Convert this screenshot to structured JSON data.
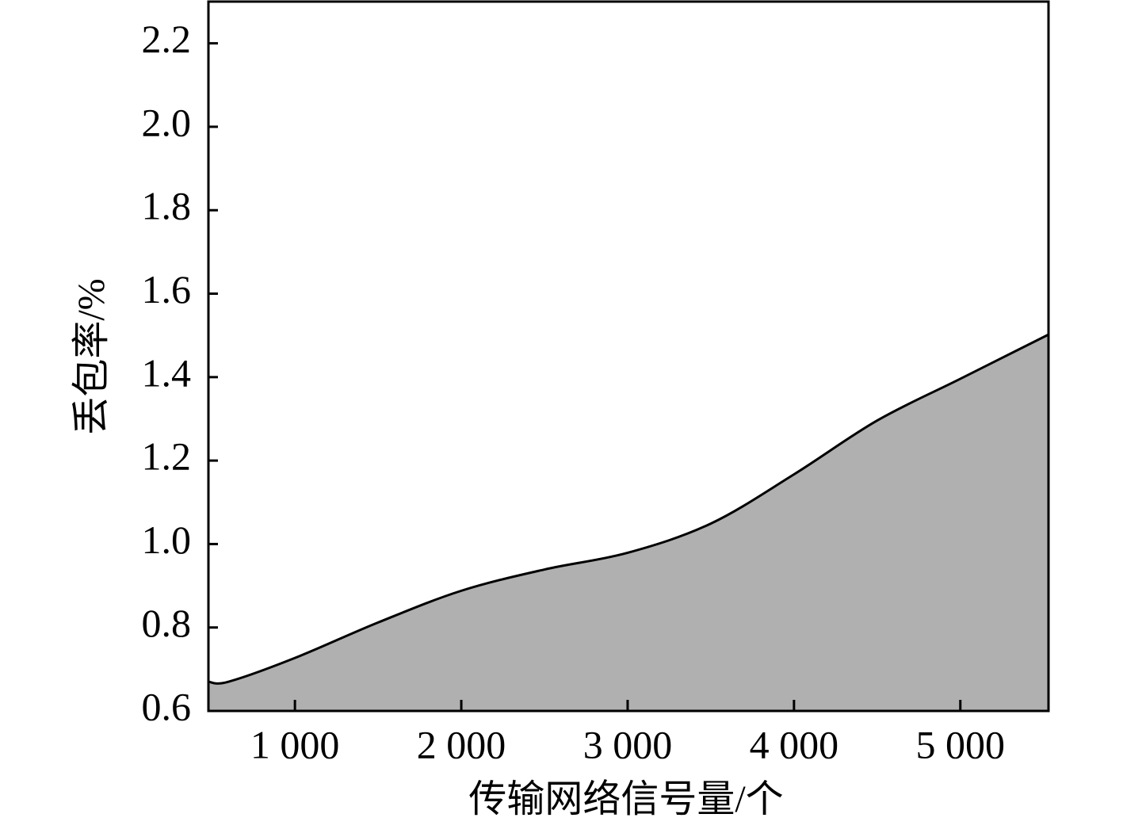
{
  "chart_data": {
    "type": "area",
    "x_label": "传输网络信号量/个",
    "y_label": "丢包率/%",
    "x": [
      480,
      600,
      1000,
      1500,
      2000,
      2500,
      3000,
      3500,
      4000,
      4500,
      5000,
      5530
    ],
    "series": [
      {
        "color": "#b0b0b0",
        "values": [
          0.67,
          0.67,
          0.727,
          0.812,
          0.888,
          0.939,
          0.979,
          1.049,
          1.167,
          1.296,
          1.396,
          1.502
        ]
      }
    ],
    "xlim": [
      480,
      5530
    ],
    "xticks": [
      {
        "value": 1000,
        "label": "1 000"
      },
      {
        "value": 2000,
        "label": "2 000"
      },
      {
        "value": 3000,
        "label": "3 000"
      },
      {
        "value": 4000,
        "label": "4 000"
      },
      {
        "value": 5000,
        "label": "5 000"
      }
    ],
    "ylim": [
      0.6,
      2.3
    ],
    "yticks": [
      0.6,
      0.8,
      {
        "value": 1,
        "label": "1.0"
      },
      1.2,
      1.4,
      1.6,
      1.8,
      {
        "value": 2,
        "label": "2.0"
      },
      2.2
    ]
  }
}
